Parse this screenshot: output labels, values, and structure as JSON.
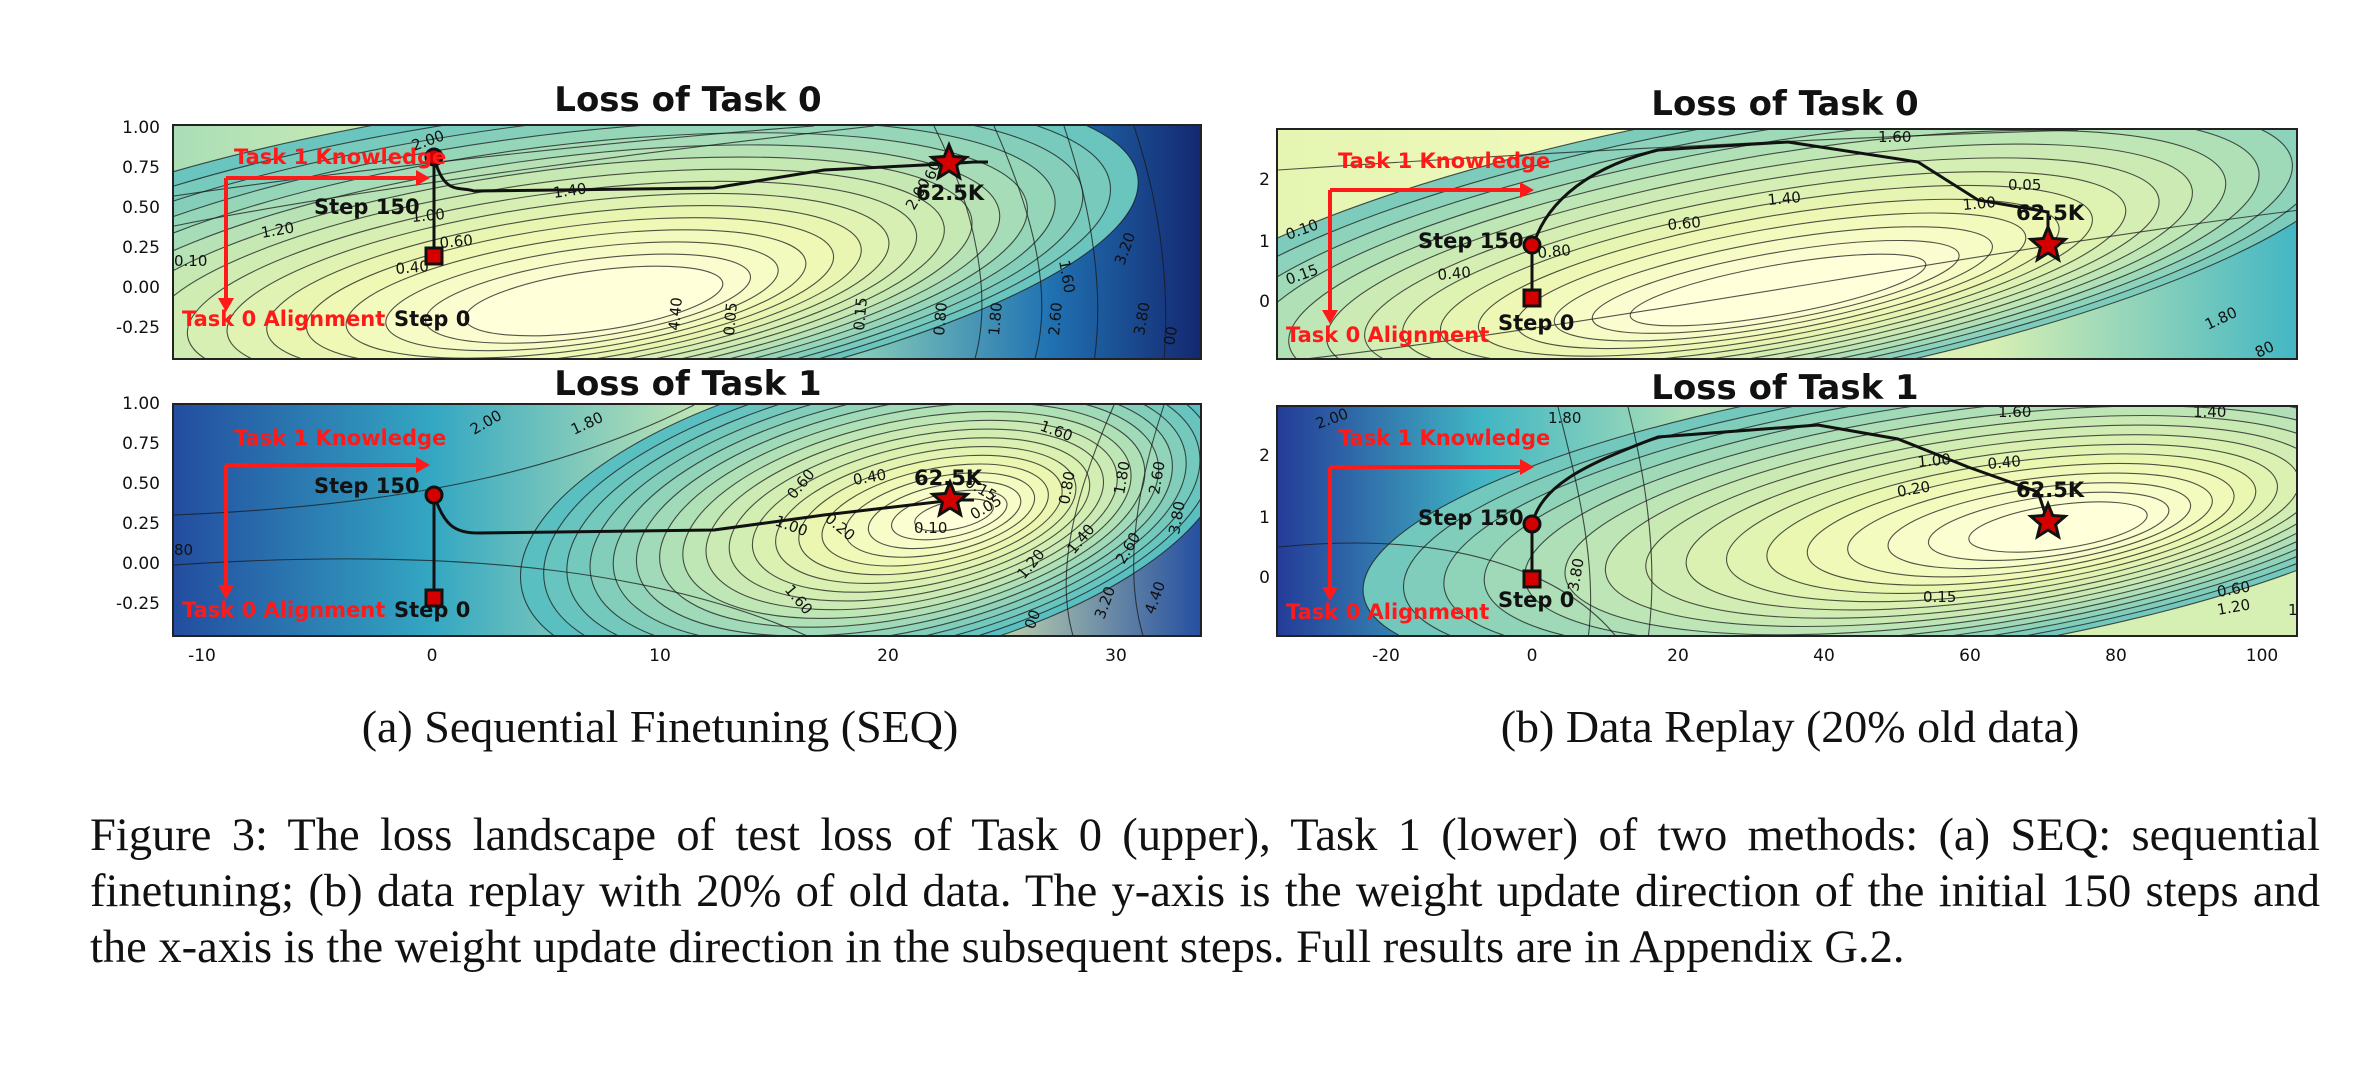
{
  "panels": [
    {
      "title": "Loss of Task 0",
      "yticks": [
        "1.00",
        "0.75",
        "0.50",
        "0.25",
        "0.00",
        "-0.25"
      ],
      "palette": "dark_right"
    },
    {
      "title": "Loss of Task 1",
      "yticks": [
        "1.00",
        "0.75",
        "0.50",
        "0.25",
        "0.00",
        "-0.25"
      ],
      "palette": "dark_left"
    },
    {
      "title": "Loss of Task 0",
      "yticks": [
        "2",
        "1",
        "0"
      ],
      "palette": "dark_right"
    },
    {
      "title": "Loss of Task 1",
      "yticks": [
        "2",
        "1",
        "0"
      ],
      "palette": "dark_left"
    }
  ],
  "xaxis_a": [
    "-10",
    "0",
    "10",
    "20",
    "30"
  ],
  "xaxis_b": [
    "-20",
    "0",
    "20",
    "40",
    "60",
    "80",
    "100"
  ],
  "annotations": {
    "knowledge": "Task 1 Knowledge",
    "alignment": "Task 0 Alignment",
    "step150": "Step 150",
    "step0": "Step 0",
    "end": "62.5K"
  },
  "contour_labels": {
    "p0": [
      "2.00",
      "1.40",
      "1.20",
      "1.00",
      "0.60",
      "0.40",
      "0.10",
      "60",
      "2.00",
      "1.60",
      "3.20",
      "4.40",
      "0.05",
      "0.15",
      "0.80",
      "1.80",
      "2.60",
      "3.80",
      "00"
    ],
    "p1": [
      "2.00",
      "1.80",
      "1.60",
      "0.60",
      "0.40",
      "0.15",
      "0.20",
      "0.10",
      "0.05",
      "0.80",
      "1.80",
      "2.60",
      "3.80",
      "1.00",
      "2.60",
      "1.60",
      "1.20",
      "1.40",
      "00",
      "3.20",
      "4.40",
      "80"
    ],
    "p2": [
      "1.60",
      "1.40",
      "1.00",
      "0.60",
      "0.80",
      "0.40",
      "0.15",
      "0.05",
      "0.10",
      "1.80",
      "80"
    ],
    "p3": [
      "1.80",
      "1.60",
      "1.40",
      "1.00",
      "0.40",
      "0.20",
      "0.15",
      "0.60",
      "1.20",
      "3.80",
      "2.00",
      "1"
    ]
  },
  "subcaptions": [
    "(a) Sequential Finetuning (SEQ)",
    "(b) Data Replay (20% old data)"
  ],
  "caption": "Figure 3: The loss landscape of test loss of Task 0 (upper), Task 1 (lower) of two methods: (a) SEQ: sequential finetuning; (b) data replay with 20% of old data. The y-axis is the weight update direction of the initial 150 steps and the x-axis is the weight update direction in the subsequent steps. Full results are in Appendix G.2.",
  "colors": {
    "annotation_red": "#ff1a1a",
    "path": "#111111",
    "light": "#ffffd9",
    "dark": "#0c2c84"
  }
}
